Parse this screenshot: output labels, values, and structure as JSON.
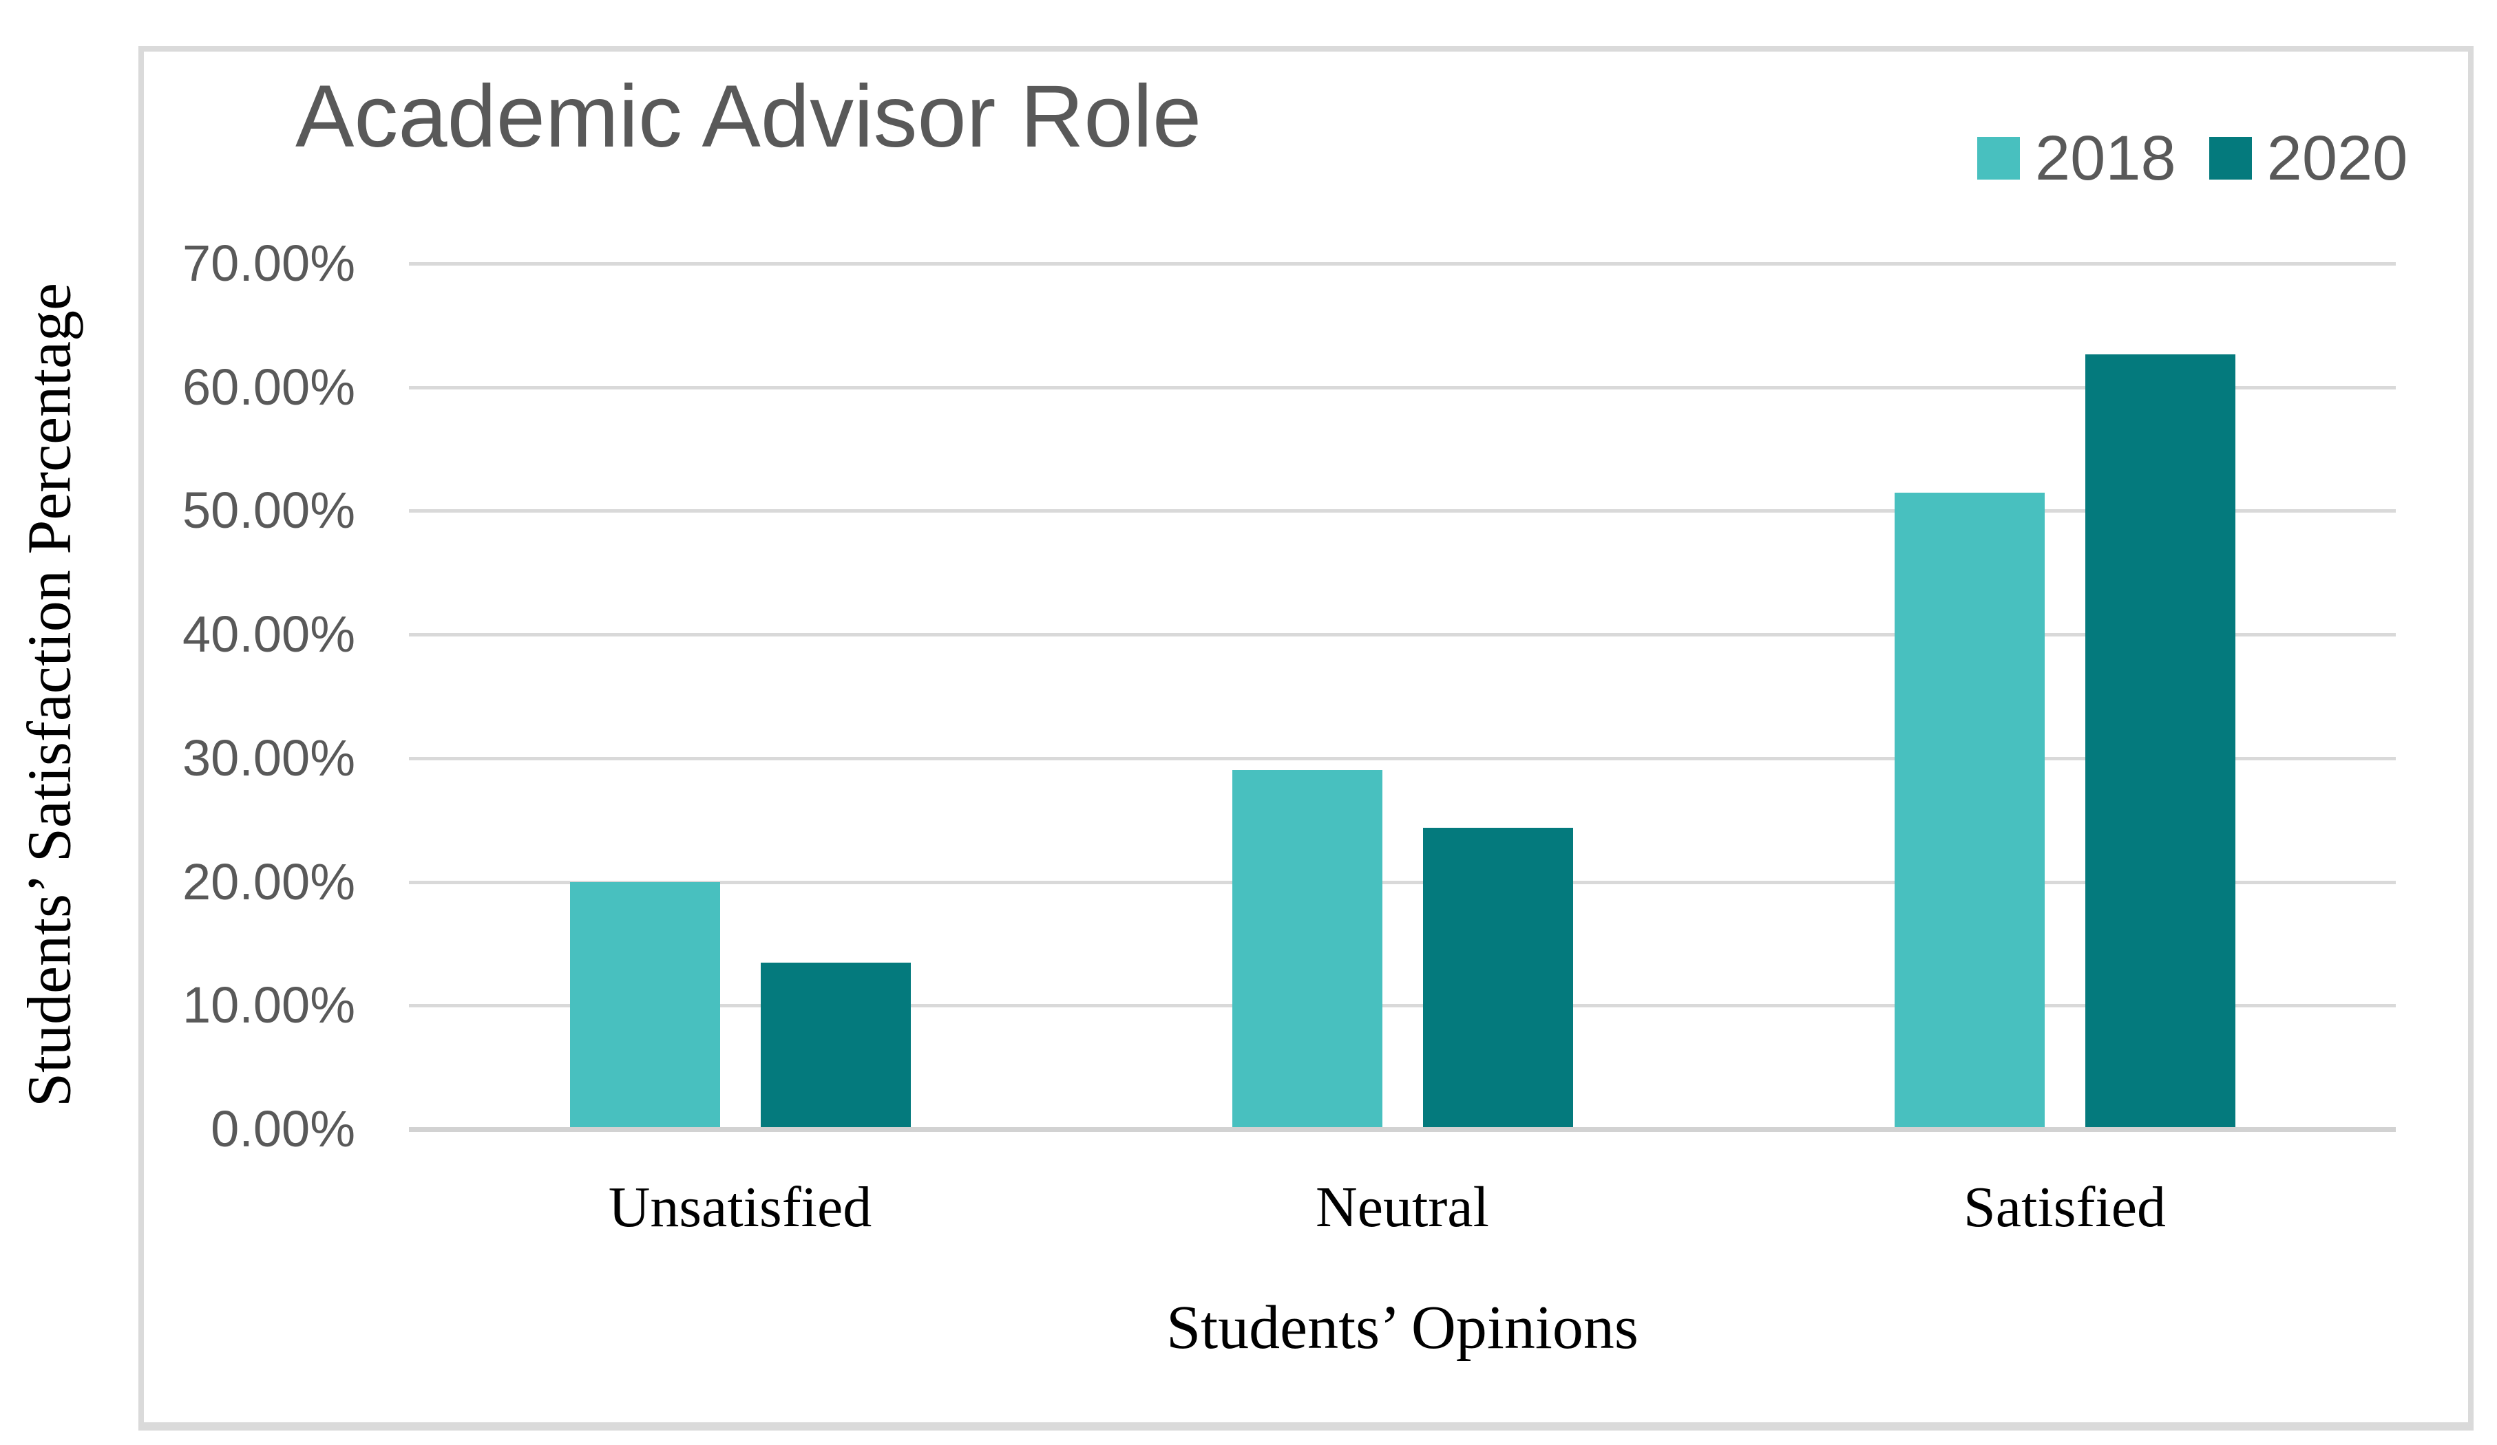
{
  "chart": {
    "title": "Academic Advisor Role"
  },
  "colors": {
    "series_2018": "#48C0BF",
    "series_2020": "#047A7D",
    "title_text": "#595959",
    "tick_text": "#595959",
    "label_text": "#000000",
    "gridline": "#D9D9D9",
    "axis_line": "#D2D2D2",
    "frame_border": "#DADADA"
  },
  "chart_data": {
    "type": "bar",
    "title": "Academic Advisor Role",
    "categories": [
      "Unsatisfied",
      "Neutral",
      "Satisfied"
    ],
    "series": [
      {
        "name": "2018",
        "color": "#48C0BF",
        "values": [
          19.8,
          28.9,
          51.3
        ]
      },
      {
        "name": "2020",
        "color": "#047A7D",
        "values": [
          13.3,
          24.2,
          62.5
        ]
      }
    ],
    "values_unit": "percent",
    "xlabel": "Students’ Opinions",
    "ylabel": "Students’ Satisfaction Percentage",
    "ylim": [
      0,
      70
    ],
    "ytick_step": 10,
    "ytick_labels": [
      "0.00%",
      "10.00%",
      "20.00%",
      "30.00%",
      "40.00%",
      "50.00%",
      "60.00%",
      "70.00%"
    ],
    "grid": true,
    "legend_position": "top-right"
  }
}
